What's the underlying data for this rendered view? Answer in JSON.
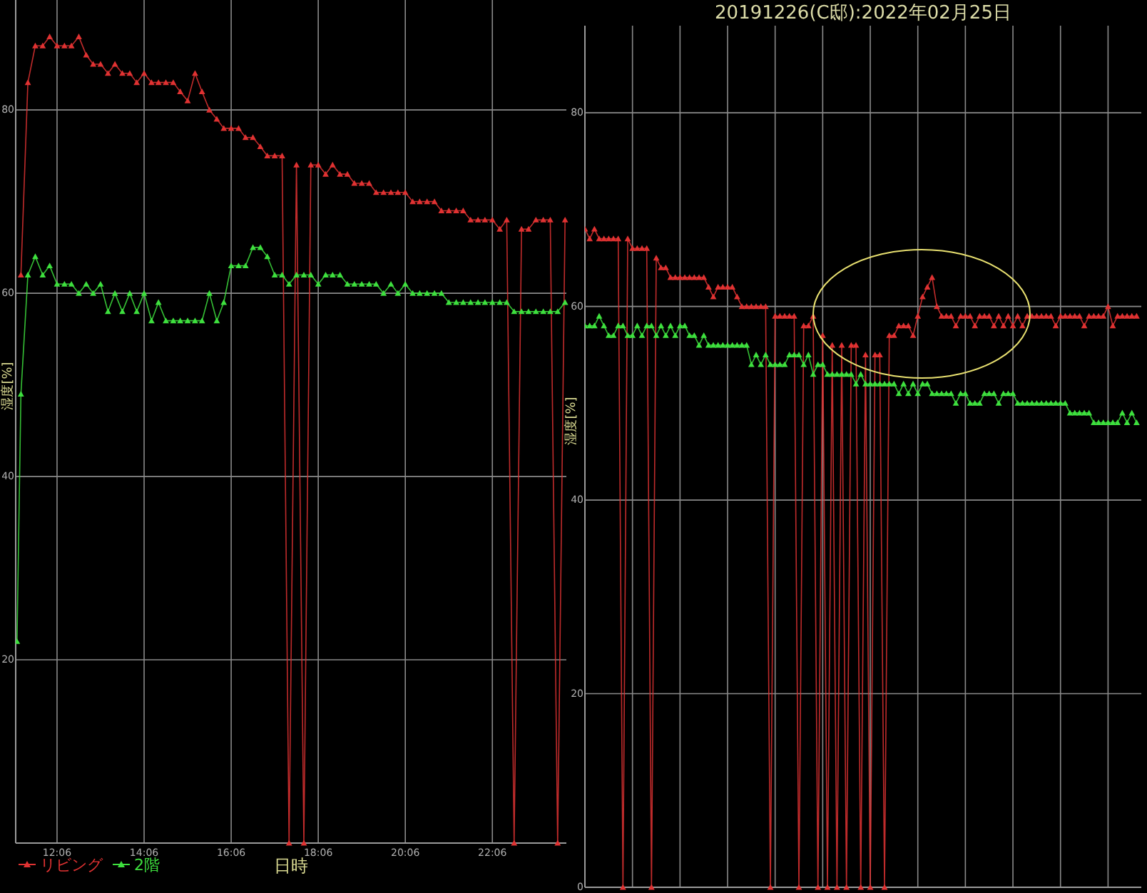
{
  "chart_data": [
    {
      "type": "line",
      "xlabel": "日時",
      "ylabel": "湿度[%]",
      "xlim": [
        11.15,
        23.8
      ],
      "xticks": [
        {
          "value": 12.1,
          "label": "12:06"
        },
        {
          "value": 14.1,
          "label": "14:06"
        },
        {
          "value": 16.1,
          "label": "16:06"
        },
        {
          "value": 18.1,
          "label": "18:06"
        },
        {
          "value": 20.1,
          "label": "20:06"
        },
        {
          "value": 22.1,
          "label": "22:06"
        }
      ],
      "ylim": [
        0,
        92
      ],
      "yticks": [
        20,
        40,
        60,
        80
      ],
      "grid": true,
      "legend": "bottom left",
      "marker": "triangle",
      "series": [
        {
          "name": "リビング",
          "color": "#e03232",
          "x": [
            11.27,
            11.43,
            11.6,
            11.77,
            11.93,
            12.1,
            12.27,
            12.43,
            12.6,
            12.77,
            12.93,
            13.1,
            13.27,
            13.43,
            13.6,
            13.77,
            13.93,
            14.1,
            14.27,
            14.43,
            14.6,
            14.77,
            14.93,
            15.1,
            15.27,
            15.43,
            15.6,
            15.77,
            15.93,
            16.1,
            16.27,
            16.43,
            16.6,
            16.77,
            16.93,
            17.1,
            17.27,
            17.43,
            17.6,
            17.77,
            17.93,
            18.1,
            18.27,
            18.43,
            18.6,
            18.77,
            18.93,
            19.1,
            19.27,
            19.43,
            19.6,
            19.77,
            19.93,
            20.1,
            20.27,
            20.43,
            20.6,
            20.77,
            20.93,
            21.1,
            21.27,
            21.43,
            21.6,
            21.77,
            21.93,
            22.1,
            22.27,
            22.43,
            22.6,
            22.77,
            22.93,
            23.1,
            23.27,
            23.43,
            23.6,
            23.77
          ],
          "values": [
            62,
            83,
            87,
            87,
            88,
            87,
            87,
            87,
            88,
            86,
            85,
            85,
            84,
            85,
            84,
            84,
            83,
            84,
            83,
            83,
            83,
            83,
            82,
            81,
            84,
            82,
            80,
            79,
            78,
            78,
            78,
            77,
            77,
            76,
            75,
            75,
            75,
            0,
            74,
            0,
            74,
            74,
            73,
            74,
            73,
            73,
            72,
            72,
            72,
            71,
            71,
            71,
            71,
            71,
            70,
            70,
            70,
            70,
            69,
            69,
            69,
            69,
            68,
            68,
            68,
            68,
            67,
            68,
            0,
            67,
            67,
            68,
            68,
            68,
            0,
            68
          ]
        },
        {
          "name": "2階",
          "color": "#3ee03e",
          "x": [
            11.18,
            11.27,
            11.43,
            11.6,
            11.77,
            11.93,
            12.1,
            12.27,
            12.43,
            12.6,
            12.77,
            12.93,
            13.1,
            13.27,
            13.43,
            13.6,
            13.77,
            13.93,
            14.1,
            14.27,
            14.43,
            14.6,
            14.77,
            14.93,
            15.1,
            15.27,
            15.43,
            15.6,
            15.77,
            15.93,
            16.1,
            16.27,
            16.43,
            16.6,
            16.77,
            16.93,
            17.1,
            17.27,
            17.43,
            17.6,
            17.77,
            17.93,
            18.1,
            18.27,
            18.43,
            18.6,
            18.77,
            18.93,
            19.1,
            19.27,
            19.43,
            19.6,
            19.77,
            19.93,
            20.1,
            20.27,
            20.43,
            20.6,
            20.77,
            20.93,
            21.1,
            21.27,
            21.43,
            21.6,
            21.77,
            21.93,
            22.1,
            22.27,
            22.43,
            22.6,
            22.77,
            22.93,
            23.1,
            23.27,
            23.43,
            23.6,
            23.77
          ],
          "values": [
            22,
            49,
            62,
            64,
            62,
            63,
            61,
            61,
            61,
            60,
            61,
            60,
            61,
            58,
            60,
            58,
            60,
            58,
            60,
            57,
            59,
            57,
            57,
            57,
            57,
            57,
            57,
            60,
            57,
            59,
            63,
            63,
            63,
            65,
            65,
            64,
            62,
            62,
            61,
            62,
            62,
            62,
            61,
            62,
            62,
            62,
            61,
            61,
            61,
            61,
            61,
            60,
            61,
            60,
            61,
            60,
            60,
            60,
            60,
            60,
            59,
            59,
            59,
            59,
            59,
            59,
            59,
            59,
            59,
            58,
            58,
            58,
            58,
            58,
            58,
            58,
            59
          ]
        }
      ]
    },
    {
      "type": "line",
      "title": "20191226(C邸):2022年02月25日",
      "ylabel": "湿度[%]",
      "categories": [
        null,
        null,
        null,
        null,
        null,
        null,
        null,
        null,
        null,
        null,
        null,
        null,
        null,
        null,
        null,
        null,
        null,
        null,
        null,
        null,
        null,
        null,
        null,
        null,
        null,
        null,
        null,
        null,
        null,
        null,
        null,
        null,
        null,
        null,
        null,
        null,
        null,
        null,
        null,
        null,
        null,
        null,
        null,
        null,
        null,
        null,
        null,
        null,
        null,
        null,
        null,
        null,
        null,
        null,
        null,
        null,
        null,
        null,
        null,
        null,
        null,
        null,
        null,
        null,
        null,
        null,
        null,
        null,
        null,
        null,
        null,
        null,
        null,
        null,
        null,
        null,
        null,
        null,
        null,
        null,
        null,
        null,
        null,
        null,
        null,
        null,
        null,
        null,
        null,
        null,
        null,
        null,
        null,
        null,
        null,
        null,
        null,
        null,
        null,
        null,
        null,
        null,
        null,
        null,
        null,
        null,
        null,
        null,
        null,
        null,
        null,
        null,
        null,
        null,
        null,
        null,
        null
      ],
      "ylim": [
        0,
        89
      ],
      "yticks": [
        0,
        20,
        40,
        60,
        80
      ],
      "grid": true,
      "tick_labels": "y",
      "marker": "triangle",
      "series": [
        {
          "color": "#e03232",
          "values": [
            68,
            67,
            68,
            67,
            67,
            67,
            67,
            67,
            0,
            67,
            66,
            66,
            66,
            66,
            0,
            65,
            64,
            64,
            63,
            63,
            63,
            63,
            63,
            63,
            63,
            63,
            62,
            61,
            62,
            62,
            62,
            62,
            61,
            60,
            60,
            60,
            60,
            60,
            60,
            0,
            59,
            59,
            59,
            59,
            59,
            0,
            58,
            58,
            59,
            0,
            57,
            0,
            56,
            0,
            56,
            0,
            56,
            56,
            0,
            55,
            0,
            55,
            55,
            0,
            57,
            57,
            58,
            58,
            58,
            57,
            59,
            61,
            62,
            63,
            60,
            59,
            59,
            59,
            58,
            59,
            59,
            59,
            58,
            59,
            59,
            59,
            58,
            59,
            58,
            59,
            58,
            59,
            58,
            59,
            59,
            59,
            59,
            59,
            59,
            58,
            59,
            59,
            59,
            59,
            59,
            58,
            59,
            59,
            59,
            59,
            60,
            58,
            59,
            59,
            59,
            59,
            59
          ]
        },
        {
          "color": "#3ee03e",
          "values": [
            58,
            58,
            58,
            59,
            58,
            57,
            57,
            58,
            58,
            57,
            57,
            58,
            57,
            58,
            58,
            57,
            58,
            57,
            58,
            57,
            58,
            58,
            57,
            57,
            56,
            57,
            56,
            56,
            56,
            56,
            56,
            56,
            56,
            56,
            56,
            54,
            55,
            54,
            55,
            54,
            54,
            54,
            54,
            55,
            55,
            55,
            54,
            55,
            53,
            54,
            54,
            53,
            53,
            53,
            53,
            53,
            53,
            52,
            53,
            52,
            52,
            52,
            52,
            52,
            52,
            52,
            51,
            52,
            51,
            52,
            51,
            52,
            52,
            51,
            51,
            51,
            51,
            51,
            50,
            51,
            51,
            50,
            50,
            50,
            51,
            51,
            51,
            50,
            51,
            51,
            51,
            50,
            50,
            50,
            50,
            50,
            50,
            50,
            50,
            50,
            50,
            50,
            49,
            49,
            49,
            49,
            49,
            48,
            48,
            48,
            48,
            48,
            48,
            49,
            48,
            49,
            48
          ]
        }
      ]
    }
  ]
}
